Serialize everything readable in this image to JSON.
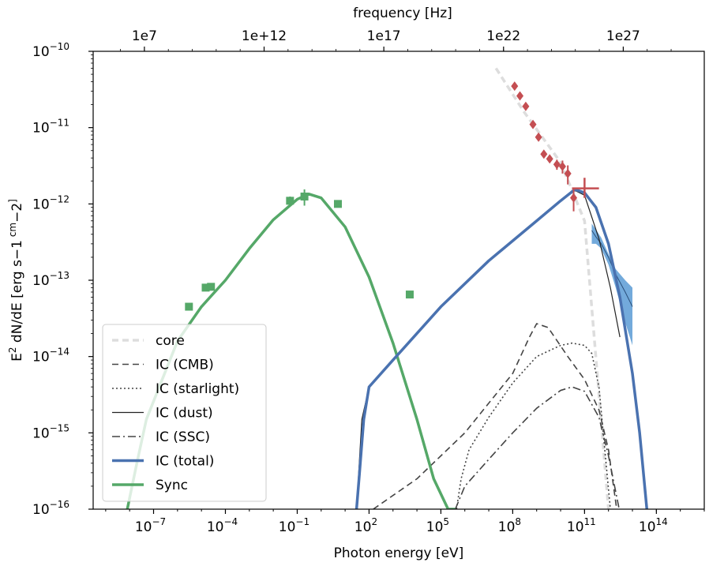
{
  "chart_data": {
    "type": "line",
    "xlabel": "Photon energy [eV]",
    "ylabel_parts": [
      "E",
      "2",
      " dN/dE [erg s",
      "−1",
      " cm",
      "−2",
      "]"
    ],
    "top_axis_label": "frequency [Hz]",
    "x_scale": "log",
    "y_scale": "log",
    "xlim": [
      3e-10,
      1e+16
    ],
    "ylim": [
      1e-16,
      1e-10
    ],
    "grid": false,
    "legend_position": "lower-left",
    "x_ticks": [
      {
        "value": 1e-07,
        "base": "10",
        "exp": "−7"
      },
      {
        "value": 0.0001,
        "base": "10",
        "exp": "−4"
      },
      {
        "value": 0.1,
        "base": "10",
        "exp": "−1"
      },
      {
        "value": 100.0,
        "base": "10",
        "exp": "2"
      },
      {
        "value": 100000.0,
        "base": "10",
        "exp": "5"
      },
      {
        "value": 100000000.0,
        "base": "10",
        "exp": "8"
      },
      {
        "value": 100000000000.0,
        "base": "10",
        "exp": "11"
      },
      {
        "value": 100000000000000.0,
        "base": "10",
        "exp": "14"
      }
    ],
    "y_ticks": [
      {
        "value": 1e-10,
        "base": "10",
        "exp": "−10"
      },
      {
        "value": 1e-11,
        "base": "10",
        "exp": "−11"
      },
      {
        "value": 1e-12,
        "base": "10",
        "exp": "−12"
      },
      {
        "value": 1e-13,
        "base": "10",
        "exp": "−13"
      },
      {
        "value": 1e-14,
        "base": "10",
        "exp": "−14"
      },
      {
        "value": 1e-15,
        "base": "10",
        "exp": "−15"
      },
      {
        "value": 1e-16,
        "base": "10",
        "exp": "−16"
      }
    ],
    "top_ticks": [
      {
        "energy_ev": 4.1357e-08,
        "label": "1e7"
      },
      {
        "energy_ev": 0.0041357,
        "label": "1e+12"
      },
      {
        "energy_ev": 413.57,
        "label": "1e17"
      },
      {
        "energy_ev": 41357000.0,
        "label": "1e22"
      },
      {
        "energy_ev": 4135700000000.0,
        "label": "1e27"
      }
    ],
    "series": [
      {
        "name": "core",
        "style": "dashed",
        "color": "#dddddd",
        "width": 3.5,
        "x": [
          20000000.0,
          300000000.0,
          10000000000.0,
          100000000000.0,
          1000000000000.0
        ],
        "y": [
          6e-11,
          1.6e-11,
          3.5e-12,
          6e-13,
          1e-16
        ]
      },
      {
        "name": "IC (CMB)",
        "style": "dashed",
        "color": "#444444",
        "width": 1.6,
        "x": [
          150.0,
          10000.0,
          1000000.0,
          100000000.0,
          500000000.0,
          1000000000.0,
          3000000000.0,
          20000000000.0,
          100000000000.0,
          400000000000.0,
          1000000000000.0,
          2200000000000.0
        ],
        "y": [
          1e-16,
          2.5e-16,
          1e-15,
          6e-15,
          1.8e-14,
          2.7e-14,
          2.4e-14,
          1e-14,
          5e-15,
          2e-15,
          6e-16,
          1e-16
        ]
      },
      {
        "name": "IC (starlight)",
        "style": "dotted",
        "color": "#444444",
        "width": 1.6,
        "x": [
          450000.0,
          700000.0,
          1500000.0,
          10000000.0,
          100000000.0,
          1000000000.0,
          10000000000.0,
          30000000000.0,
          100000000000.0,
          200000000000.0,
          400000000000.0,
          700000000000.0,
          1200000000000.0
        ],
        "y": [
          1e-16,
          2.5e-16,
          6e-16,
          1.6e-15,
          4.5e-15,
          1e-14,
          1.4e-14,
          1.5e-14,
          1.4e-14,
          1.1e-14,
          4e-15,
          6e-16,
          1e-16
        ]
      },
      {
        "name": "IC (dust)",
        "style": "solid",
        "color": "#222222",
        "width": 1.2,
        "x": [
          30,
          50,
          100.0,
          1000.0,
          100000.0,
          10000000.0,
          1000000000.0,
          10000000000.0,
          40000000000.0,
          100000000000.0,
          400000000000.0,
          1200000000000.0,
          3000000000000.0
        ],
        "y": [
          1e-16,
          1.5e-15,
          4e-15,
          9e-15,
          4.5e-14,
          1.8e-13,
          6e-13,
          1.1e-12,
          1.5e-12,
          1.3e-12,
          3.5e-13,
          8e-14,
          1.8e-14
        ]
      },
      {
        "name": "IC (SSC)",
        "style": "dashdot",
        "color": "#444444",
        "width": 1.6,
        "x": [
          400000.0,
          1000000.0,
          10000000.0,
          100000000.0,
          1000000000.0,
          10000000000.0,
          30000000000.0,
          100000000000.0,
          400000000000.0,
          1000000000000.0,
          2800000000000.0
        ],
        "y": [
          1e-16,
          2e-16,
          4.5e-16,
          1e-15,
          2.1e-15,
          3.6e-15,
          4e-15,
          3.5e-15,
          1.6e-15,
          5e-16,
          1e-16
        ]
      },
      {
        "name": "IC (total)",
        "style": "solid",
        "color": "#4a72b0",
        "width": 3.5,
        "x": [
          30,
          40,
          60,
          100.0,
          1000.0,
          100000.0,
          10000000.0,
          1000000000.0,
          10000000000.0,
          40000000000.0,
          100000000000.0,
          300000000000.0,
          1000000000000.0,
          3000000000000.0,
          10000000000000.0,
          20000000000000.0,
          40000000000000.0
        ],
        "y": [
          1e-16,
          3e-16,
          1.5e-15,
          4e-15,
          9e-15,
          4.5e-14,
          1.8e-13,
          6e-13,
          1.1e-12,
          1.55e-12,
          1.4e-12,
          9e-13,
          3e-13,
          6e-14,
          6e-15,
          1e-15,
          1e-16
        ]
      },
      {
        "name": "Sync",
        "style": "solid",
        "color": "#55a868",
        "width": 3.5,
        "x": [
          8e-09,
          2e-08,
          5e-08,
          1e-06,
          1e-05,
          0.0001,
          0.001,
          0.01,
          0.1,
          0.3,
          1,
          10,
          100,
          1000.0,
          10000.0,
          50000.0,
          200000.0,
          400000.0
        ],
        "y": [
          1e-16,
          4e-16,
          1.5e-15,
          1.6e-14,
          4.5e-14,
          1e-13,
          2.6e-13,
          6.2e-13,
          1.15e-12,
          1.35e-12,
          1.2e-12,
          5e-13,
          1.1e-13,
          1.5e-14,
          1.5e-15,
          2.5e-16,
          1e-16,
          1e-16
        ]
      }
    ],
    "sync_points": {
      "color": "#55a868",
      "x": [
        3e-06,
        1.5e-05,
        2.5e-05,
        0.05,
        0.2,
        5
      ],
      "y": [
        4.5e-14,
        8e-14,
        8.2e-14,
        1.1e-12,
        1.25e-12,
        1e-12
      ],
      "y_err_low": [
        0,
        0,
        0,
        1.5e-13,
        3e-13,
        0
      ],
      "y_err_high": [
        0,
        0,
        0,
        1.5e-13,
        3e-13,
        0
      ]
    },
    "sync_point_high": {
      "x": 5000.0,
      "y": 6.5e-14
    },
    "gamma_points": {
      "color": "#c44e52",
      "x": [
        120000000.0,
        200000000.0,
        350000000.0,
        700000000.0,
        1200000000.0,
        2000000000.0,
        3500000000.0,
        7000000000.0,
        12000000000.0,
        20000000000.0,
        35000000000.0
      ],
      "y": [
        3.5e-11,
        2.6e-11,
        1.9e-11,
        1.1e-11,
        7.5e-12,
        4.5e-12,
        3.9e-12,
        3.3e-12,
        3.1e-12,
        2.5e-12,
        1.2e-12
      ],
      "y_err": [
        0.0,
        0.0,
        0.0,
        0.0,
        0.0,
        0.0,
        0.0,
        5e-13,
        6e-13,
        7e-13,
        4e-13
      ]
    },
    "gamma_cross": {
      "x": 100000000000.0,
      "y": 1.6e-12,
      "x_low": 30000000000.0,
      "x_high": 400000000000.0,
      "y_low": 1.2e-12,
      "y_high": 2.2e-12
    },
    "butterfly": {
      "color": "#5b9bd5",
      "x": [
        200000000000.0,
        300000000000.0,
        500000000000.0,
        1000000000000.0,
        2000000000000.0,
        5000000000000.0,
        10000000000000.0
      ],
      "y_low": [
        3e-13,
        3e-13,
        2.6e-13,
        1.6e-13,
        8e-14,
        2.8e-14,
        1.4e-14
      ],
      "y_high": [
        5.5e-13,
        4.6e-13,
        3.6e-13,
        2.2e-13,
        1.4e-13,
        1e-13,
        8e-14
      ],
      "line_y": [
        4.5e-13,
        3.7e-13,
        3e-13,
        2e-13,
        1.2e-13,
        7e-14,
        4.5e-14
      ]
    }
  }
}
